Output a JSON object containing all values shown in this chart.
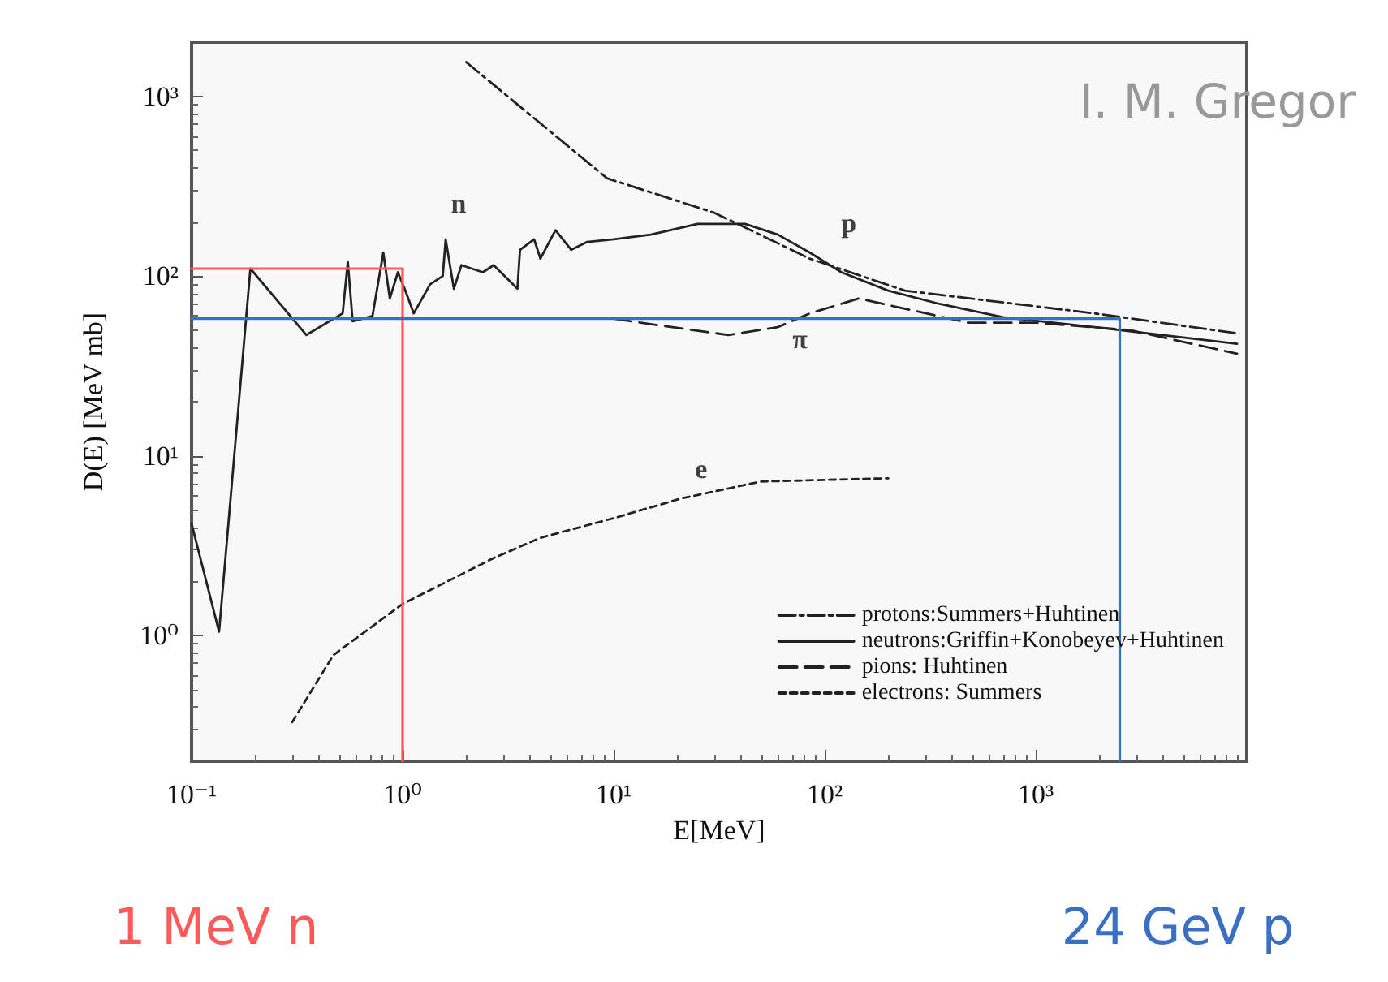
{
  "chart_data": {
    "type": "line",
    "xlabel": "E[MeV]",
    "ylabel": "D(E) [MeV mb]",
    "log": "xy",
    "xlim": [
      0.1,
      10000
    ],
    "ylim": [
      0.2,
      2000
    ],
    "xticks": [
      {
        "value": 0.1,
        "label": "10⁻¹"
      },
      {
        "value": 1,
        "label": "10⁰"
      },
      {
        "value": 10,
        "label": "10¹"
      },
      {
        "value": 100,
        "label": "10²"
      },
      {
        "value": 1000,
        "label": "10³"
      }
    ],
    "yticks": [
      {
        "value": 1,
        "label": "10⁰"
      },
      {
        "value": 10,
        "label": "10¹"
      },
      {
        "value": 100,
        "label": "10²"
      },
      {
        "value": 1000,
        "label": "10³"
      }
    ],
    "grid": false,
    "legend": "bottom right",
    "marker": "none",
    "series": [
      {
        "name": "protons:Summers+Huhtinen",
        "color": "#222222",
        "line_style": "dashdot",
        "x": [
          2,
          9.3,
          30,
          85,
          240,
          1900,
          9000
        ],
        "values": [
          1550,
          350,
          225,
          125,
          83,
          62,
          48
        ]
      },
      {
        "name": "neutrons:Griffin+Konobeyev+Huhtinen",
        "color": "#222222",
        "line_style": "solid",
        "x": [
          0.1,
          0.135,
          0.19,
          0.35,
          0.52,
          0.55,
          0.58,
          0.72,
          0.81,
          0.87,
          0.95,
          1.03,
          1.13,
          1.35,
          1.55,
          1.6,
          1.75,
          1.9,
          2.4,
          2.7,
          3.5,
          3.6,
          4.2,
          4.5,
          5.3,
          6.3,
          7.5,
          10,
          15,
          25,
          42,
          60,
          85,
          120,
          200,
          350,
          700,
          1900,
          9000
        ],
        "values": [
          4.2,
          1.05,
          110,
          47,
          62,
          120,
          56,
          60,
          135,
          75,
          105,
          83,
          62,
          90,
          100,
          160,
          85,
          115,
          105,
          115,
          85,
          140,
          160,
          125,
          180,
          140,
          155,
          160,
          170,
          195,
          195,
          170,
          135,
          105,
          83,
          70,
          59,
          52,
          42
        ]
      },
      {
        "name": "pions: Huhtinen",
        "color": "#222222",
        "line_style": "dashed",
        "x": [
          10,
          15,
          35,
          60,
          85,
          145,
          480,
          1000,
          2800,
          9000
        ],
        "values": [
          58,
          54,
          47,
          52,
          62,
          75,
          55,
          55,
          50,
          37
        ]
      },
      {
        "name": "electrons: Summers",
        "color": "#222222",
        "line_style": "dotted",
        "x": [
          0.3,
          0.47,
          1,
          2.7,
          4.5,
          10,
          21,
          50,
          200
        ],
        "values": [
          0.33,
          0.78,
          1.5,
          2.7,
          3.5,
          4.5,
          5.8,
          7.2,
          7.5
        ]
      },
      {
        "color": "#ff5a5a",
        "line_style": "solid",
        "x": [
          0.1,
          1,
          1
        ],
        "values": [
          110,
          110,
          0.2
        ]
      },
      {
        "color": "#3a6fc4",
        "line_style": "solid",
        "x": [
          0.1,
          2500,
          2500
        ],
        "values": [
          58,
          58,
          0.2
        ]
      }
    ],
    "annotations": [
      {
        "text": "n",
        "x": 1.6,
        "y": 160
      },
      {
        "text": "p",
        "x": 85,
        "y": 125
      },
      {
        "text": "π",
        "x": 85,
        "y": 62
      },
      {
        "text": "e",
        "x": 21,
        "y": 5.8
      },
      "I. M. Gregor",
      "1 MeV n",
      "24 GeV p"
    ]
  }
}
